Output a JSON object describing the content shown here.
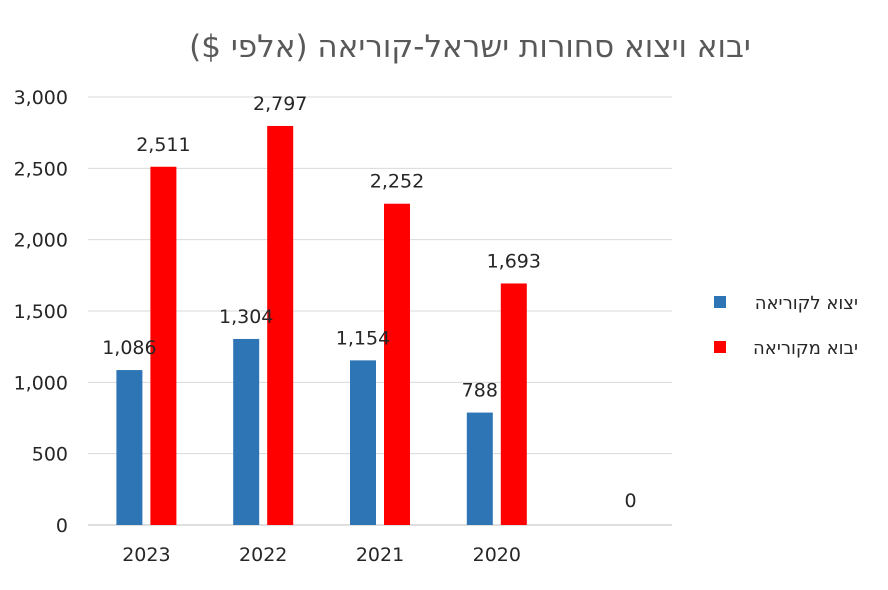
{
  "chart_data": {
    "type": "bar",
    "title": "יבוא ויצוא סחורות ישראל-קוריאה (אלפי $)",
    "categories": [
      "2023",
      "2022",
      "2021",
      "2020",
      ""
    ],
    "series": [
      {
        "name": "יצוא לקוריאה",
        "color": "#2e75b6",
        "values": [
          1086,
          1304,
          1154,
          788,
          null
        ],
        "labels": [
          "1,086",
          "1,304",
          "1,154",
          "788",
          ""
        ]
      },
      {
        "name": "יבוא מקוריאה",
        "color": "#ff0000",
        "values": [
          2511,
          2797,
          2252,
          1693,
          0
        ],
        "labels": [
          "2,511",
          "2,797",
          "2,252",
          "1,693",
          "0"
        ]
      }
    ],
    "ylim": [
      0,
      3000
    ],
    "yticks": [
      0,
      500,
      1000,
      1500,
      2000,
      2500,
      3000
    ],
    "ytick_labels": [
      "0",
      "500",
      "1,000",
      "1,500",
      "2,000",
      "2,500",
      "3,000"
    ],
    "grid": true,
    "legend": "right"
  }
}
